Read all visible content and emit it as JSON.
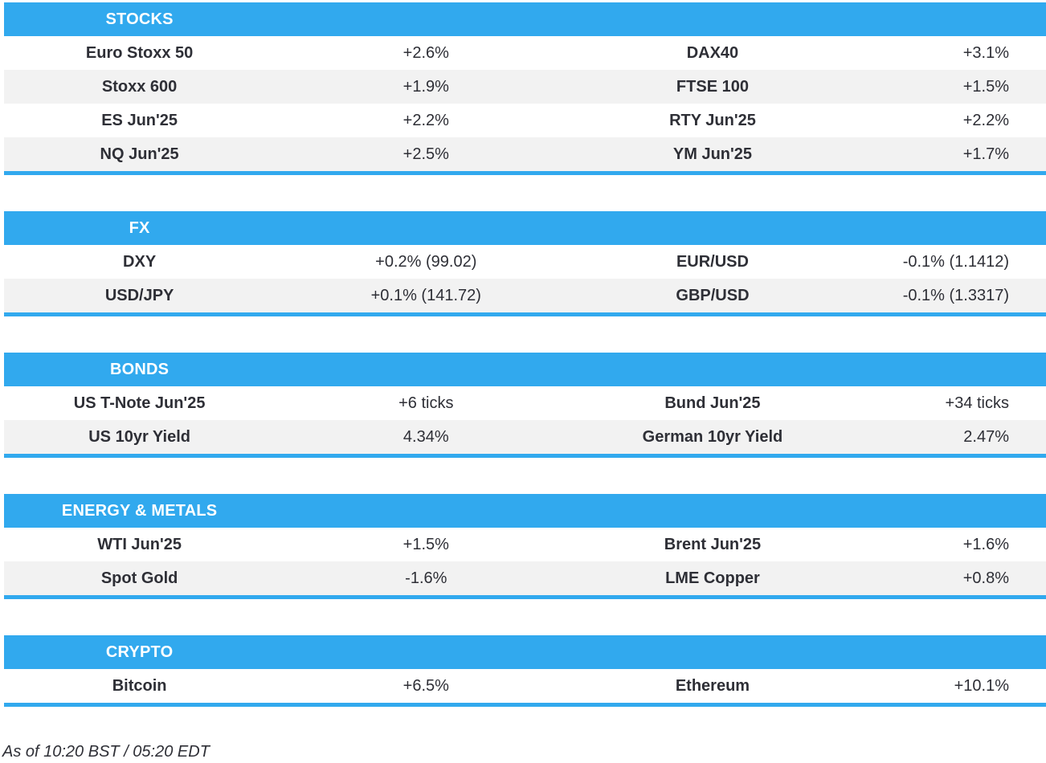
{
  "colors": {
    "accent": "#31a9ee",
    "row_alt": "#f2f2f2",
    "text": "#2e2f36",
    "header_text": "#ffffff"
  },
  "footer": {
    "as_of": "As of 10:20 BST / 05:20 EDT"
  },
  "chart_data": [
    {
      "type": "table",
      "title": "STOCKS",
      "rows": [
        [
          "Euro Stoxx 50",
          "+2.6%",
          "DAX40",
          "+3.1%"
        ],
        [
          "Stoxx 600",
          "+1.9%",
          "FTSE 100",
          "+1.5%"
        ],
        [
          "ES Jun'25",
          "+2.2%",
          "RTY Jun'25",
          "+2.2%"
        ],
        [
          "NQ Jun'25",
          "+2.5%",
          "YM Jun'25",
          "+1.7%"
        ]
      ]
    },
    {
      "type": "table",
      "title": "FX",
      "rows": [
        [
          "DXY",
          "+0.2% (99.02)",
          "EUR/USD",
          "-0.1% (1.1412)"
        ],
        [
          "USD/JPY",
          "+0.1% (141.72)",
          "GBP/USD",
          "-0.1% (1.3317)"
        ]
      ]
    },
    {
      "type": "table",
      "title": "BONDS",
      "rows": [
        [
          "US T-Note Jun'25",
          "+6 ticks",
          "Bund Jun'25",
          "+34 ticks"
        ],
        [
          "US 10yr Yield",
          "4.34%",
          "German 10yr Yield",
          "2.47%"
        ]
      ]
    },
    {
      "type": "table",
      "title": "ENERGY & METALS",
      "rows": [
        [
          "WTI Jun'25",
          "+1.5%",
          "Brent Jun'25",
          "+1.6%"
        ],
        [
          "Spot Gold",
          "-1.6%",
          "LME Copper",
          "+0.8%"
        ]
      ]
    },
    {
      "type": "table",
      "title": "CRYPTO",
      "rows": [
        [
          "Bitcoin",
          "+6.5%",
          "Ethereum",
          "+10.1%"
        ]
      ]
    }
  ]
}
